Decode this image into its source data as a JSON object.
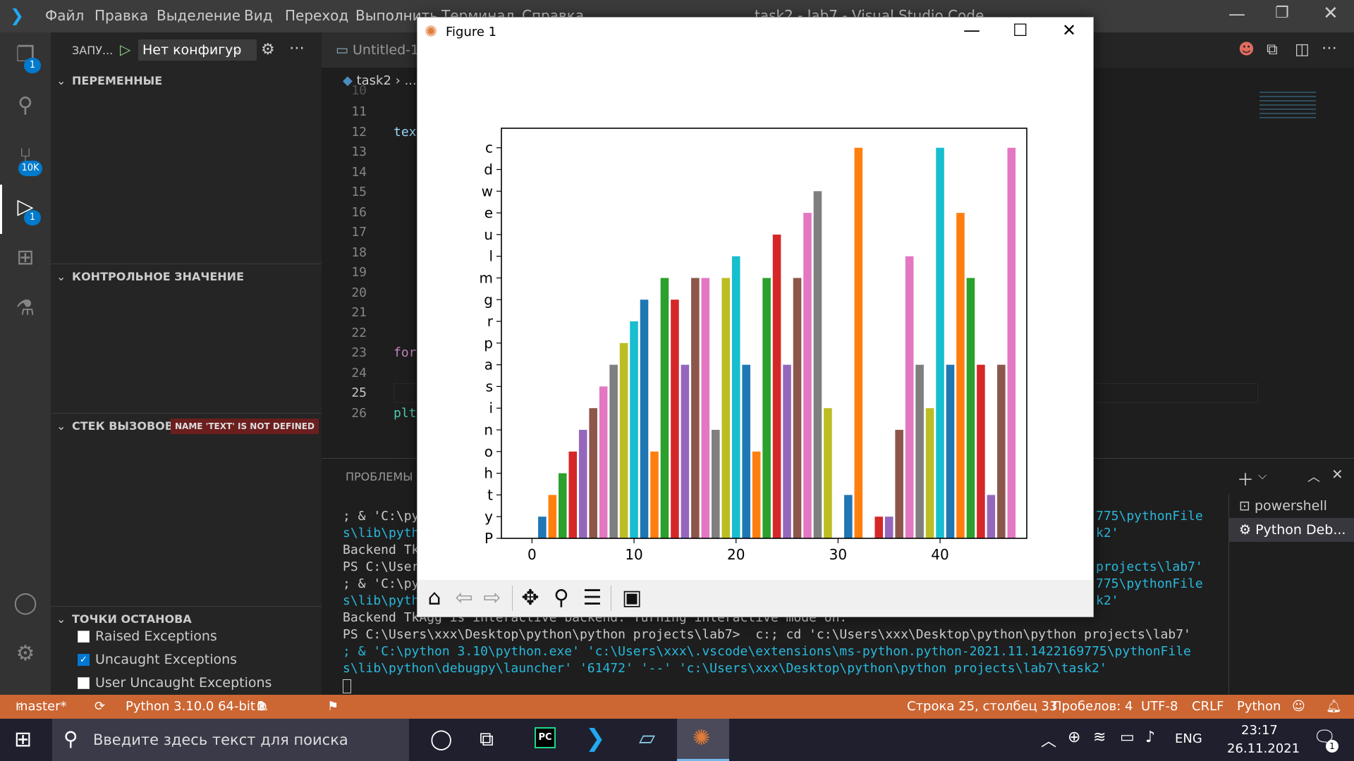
{
  "titlebar": {
    "menu": [
      "Файл",
      "Правка",
      "Выделение",
      "Вид",
      "Переход",
      "Выполнить",
      "Терминал",
      "Справка"
    ],
    "window_title": "task2 - lab7 - Visual Studio Code"
  },
  "activity_badges": {
    "explorer": "1",
    "scm": "10K",
    "debug": "1"
  },
  "debug_toolbar": {
    "label": "ЗАПУ...",
    "config": "Нет конфигур"
  },
  "editor_tab": {
    "label": "Untitled-1"
  },
  "breadcrumb": {
    "file": "task2",
    "rest": "..."
  },
  "sidebar": {
    "variables": "ПЕРЕМЕННЫЕ",
    "watch": "КОНТРОЛЬНОЕ ЗНАЧЕНИЕ",
    "callstack": "СТЕК ВЫЗОВОВ",
    "callstack_badge": "NAME 'TEXT' IS NOT DEFINED",
    "breakpoints": "ТОЧКИ ОСТАНОВА",
    "bp_items": [
      {
        "label": "Raised Exceptions",
        "checked": false
      },
      {
        "label": "Uncaught Exceptions",
        "checked": true
      },
      {
        "label": "User Uncaught Exceptions",
        "checked": false
      }
    ]
  },
  "editor": {
    "line_numbers": [
      "10",
      "11",
      "12",
      "13",
      "14",
      "15",
      "16",
      "17",
      "18",
      "19",
      "20",
      "21",
      "22",
      "23",
      "24",
      "25",
      "26"
    ],
    "code": {
      "l12": "tex",
      "l23": "for",
      "l26": "plt"
    }
  },
  "panel": {
    "title": "ПРОБЛЕМЫ",
    "terminals": [
      "powershell",
      "Python Deb..."
    ],
    "lines": [
      "; & 'C:\\py",
      "s\\lib\\pyth",
      "Backend Tk",
      "PS C:\\User",
      "; & 'C:\\py",
      "s\\lib\\pyth",
      "Backend TkAgg is interactive backend. Turning interactive mode on.",
      "PS C:\\Users\\xxx\\Desktop\\python\\python projects\\lab7>  c:; cd 'c:\\Users\\xxx\\Desktop\\python\\python projects\\lab7'",
      "; & 'C:\\python 3.10\\python.exe' 'c:\\Users\\xxx\\.vscode\\extensions\\ms-python.python-2021.11.1422169775\\pythonFile",
      "s\\lib\\python\\debugpy\\launcher' '61472' '--' 'c:\\Users\\xxx\\Desktop\\python\\python projects\\lab7\\task2'"
    ],
    "right_lines": [
      "775\\pythonFile",
      "k2'",
      "projects\\lab7'",
      "775\\pythonFile",
      "k2'"
    ]
  },
  "statusbar": {
    "branch": "master*",
    "python": "Python 3.10.0 64-bit",
    "errors": "0",
    "warnings": "1",
    "position": "Строка 25, столбец 33",
    "spaces": "Пробелов: 4",
    "encoding": "UTF-8",
    "eol": "CRLF",
    "language": "Python"
  },
  "taskbar": {
    "search_placeholder": "Введите здесь текст для поиска",
    "lang": "ENG",
    "time": "23:17",
    "date": "26.11.2021",
    "notif_count": "1"
  },
  "figure": {
    "title": "Figure 1"
  },
  "chart_data": {
    "type": "bar",
    "title": "",
    "xlabel": "",
    "ylabel": "",
    "xlim": [
      -3,
      48.5
    ],
    "ylim": [
      0,
      18.9
    ],
    "xticks": [
      0,
      10,
      20,
      30,
      40
    ],
    "ytick_labels": [
      "P",
      "y",
      "t",
      "h",
      "o",
      "n",
      "i",
      "s",
      "a",
      "p",
      "r",
      "g",
      "m",
      "l",
      "u",
      "e",
      "w",
      "d",
      "c"
    ],
    "x": [
      1,
      2,
      3,
      4,
      5,
      6,
      7,
      8,
      9,
      10,
      11,
      12,
      13,
      14,
      15,
      16,
      17,
      18,
      19,
      20,
      21,
      22,
      23,
      24,
      25,
      26,
      27,
      28,
      29,
      30,
      31,
      32,
      33,
      34,
      35,
      36,
      37,
      38,
      39,
      40,
      41,
      42,
      43,
      44,
      45,
      46,
      47
    ],
    "values": [
      1,
      2,
      3,
      4,
      5,
      6,
      7,
      8,
      9,
      10,
      11,
      4,
      12,
      11,
      8,
      12,
      12,
      5,
      12,
      13,
      8,
      4,
      12,
      14,
      8,
      12,
      15,
      16,
      6,
      0,
      2,
      18,
      0,
      1,
      1,
      5,
      13,
      8,
      6,
      18,
      8,
      15,
      12,
      8,
      2,
      8,
      18
    ]
  },
  "palette": [
    "#1f77b4",
    "#ff7f0e",
    "#2ca02c",
    "#d62728",
    "#9467bd",
    "#8c564b",
    "#e377c2",
    "#7f7f7f",
    "#bcbd22",
    "#17becf"
  ]
}
